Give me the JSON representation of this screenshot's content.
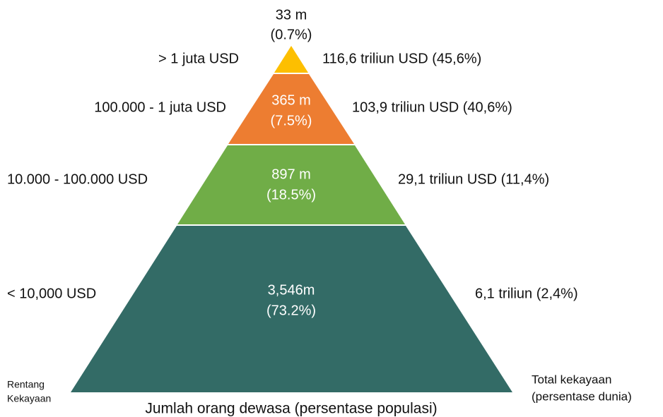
{
  "title": "Jumlah orang dewasa (persentase populasi)",
  "left_heading": [
    "Rentang",
    "Kekayaan"
  ],
  "right_heading": [
    "Total kekayaan",
    "(persentase dunia)"
  ],
  "tiers": [
    {
      "range": "> 1 juta USD",
      "count": "33 m",
      "share": "(0.7%)",
      "wealth": "116,6 triliun USD (45,6%)"
    },
    {
      "range": "100.000 - 1 juta USD",
      "count": "365 m",
      "share": "(7.5%)",
      "wealth": "103,9 triliun USD (40,6%)"
    },
    {
      "range": "10.000 - 100.000 USD",
      "count": "897 m",
      "share": "(18.5%)",
      "wealth": "29,1 triliun USD (11,4%)"
    },
    {
      "range": "< 10,000 USD",
      "count": "3,546m",
      "share": "(73.2%)",
      "wealth": "6,1 triliun (2,4%)"
    }
  ]
}
